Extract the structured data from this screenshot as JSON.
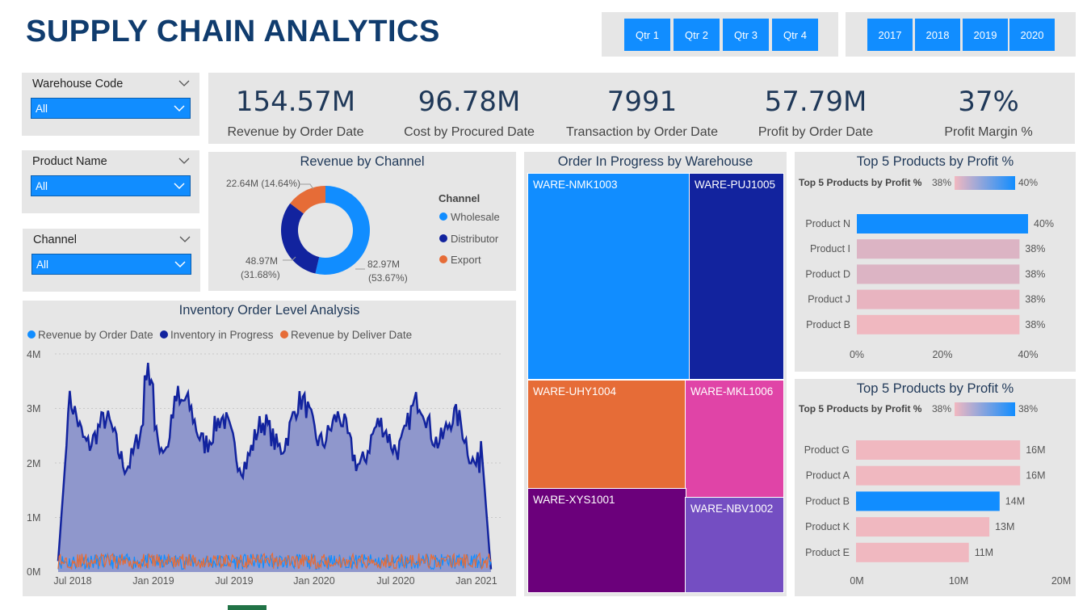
{
  "header": {
    "title": "SUPPLY CHAIN ANALYTICS",
    "quarters": [
      "Qtr 1",
      "Qtr 2",
      "Qtr 3",
      "Qtr 4"
    ],
    "years": [
      "2017",
      "2018",
      "2019",
      "2020"
    ]
  },
  "slicers": [
    {
      "title": "Warehouse Code",
      "value": "All"
    },
    {
      "title": "Product Name",
      "value": "All"
    },
    {
      "title": "Channel",
      "value": "All"
    }
  ],
  "kpis": [
    {
      "value": "154.57M",
      "label": "Revenue by Order Date"
    },
    {
      "value": "96.78M",
      "label": "Cost by Procured Date"
    },
    {
      "value": "7991",
      "label": "Transaction by Order Date"
    },
    {
      "value": "57.79M",
      "label": "Profit by Order Date"
    },
    {
      "value": "37%",
      "label": "Profit Margin %"
    }
  ],
  "donut": {
    "title": "Revenue by Channel",
    "legend_title": "Channel",
    "slices": [
      {
        "name": "Wholesale",
        "value": 82.97,
        "label": "82.97M",
        "pct": "(53.67%)",
        "color": "#118dff"
      },
      {
        "name": "Distributor",
        "value": 48.97,
        "label": "48.97M",
        "pct": "(31.68%)",
        "color": "#12239e"
      },
      {
        "name": "Export",
        "value": 22.64,
        "label": "22.64M (14.64%)",
        "pct": "",
        "color": "#e66c37"
      }
    ]
  },
  "inventory": {
    "title": "Inventory Order Level Analysis",
    "legend": [
      {
        "name": "Revenue by Order Date",
        "color": "#118dff"
      },
      {
        "name": "Inventory in Progress",
        "color": "#12239e"
      },
      {
        "name": "Revenue by Deliver Date",
        "color": "#e66c37"
      }
    ],
    "y_ticks": [
      "4M",
      "3M",
      "2M",
      "1M",
      "0M"
    ],
    "x_ticks": [
      "Jul 2018",
      "Jan 2019",
      "Jul 2019",
      "Jan 2020",
      "Jul 2020",
      "Jan 2021"
    ]
  },
  "treemap": {
    "title": "Order In Progress by Warehouse",
    "items": [
      {
        "name": "WARE-NMK1003",
        "color": "#118dff"
      },
      {
        "name": "WARE-PUJ1005",
        "color": "#12239e"
      },
      {
        "name": "WARE-UHY1004",
        "color": "#e66c37"
      },
      {
        "name": "WARE-MKL1006",
        "color": "#e044a7"
      },
      {
        "name": "WARE-XYS1001",
        "color": "#6b007b"
      },
      {
        "name": "WARE-NBV1002",
        "color": "#744ec2"
      }
    ]
  },
  "top5_pct": {
    "title": "Top 5 Products by Profit %",
    "legend_label": "Top 5 Products by Profit %",
    "legend_min": "38%",
    "legend_max": "40%",
    "x_ticks": [
      "0%",
      "20%",
      "40%"
    ],
    "items": [
      {
        "name": "Product N",
        "value": 40,
        "label": "40%",
        "color": "#118dff"
      },
      {
        "name": "Product I",
        "value": 38,
        "label": "38%",
        "color": "#dcb4c4"
      },
      {
        "name": "Product D",
        "value": 38,
        "label": "38%",
        "color": "#dcb4c4"
      },
      {
        "name": "Product J",
        "value": 38,
        "label": "38%",
        "color": "#e8b4c0"
      },
      {
        "name": "Product B",
        "value": 38,
        "label": "38%",
        "color": "#f0b8c0"
      }
    ]
  },
  "top5_profit": {
    "title": "Top 5 Products by Profit %",
    "legend_label": "Top 5 Products by Profit %",
    "legend_min": "38%",
    "legend_max": "38%",
    "x_ticks": [
      "0M",
      "10M",
      "20M"
    ],
    "items": [
      {
        "name": "Product G",
        "value": 16,
        "label": "16M",
        "color": "#f0b8c0"
      },
      {
        "name": "Product A",
        "value": 16,
        "label": "16M",
        "color": "#f0b8c0"
      },
      {
        "name": "Product B",
        "value": 14,
        "label": "14M",
        "color": "#118dff"
      },
      {
        "name": "Product K",
        "value": 13,
        "label": "13M",
        "color": "#f0b8c0"
      },
      {
        "name": "Product E",
        "value": 11,
        "label": "11M",
        "color": "#f0b8c0"
      }
    ]
  }
}
